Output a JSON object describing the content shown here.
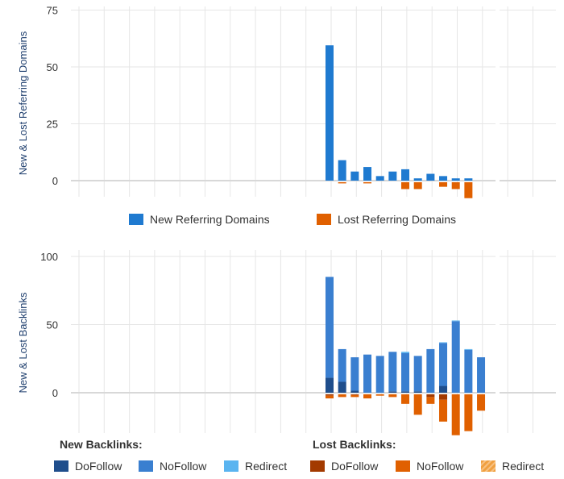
{
  "chart_data": [
    {
      "type": "bar",
      "ylabel": "New & Lost Referring Domains",
      "ylim": [
        -8,
        75
      ],
      "yticks": [
        0,
        25,
        50,
        75
      ],
      "grid": true,
      "legend": "bottom",
      "series": [
        {
          "name": "New Referring Domains",
          "color": "#1f7ad0",
          "values": [
            59.5,
            9,
            4,
            6,
            2,
            4,
            5,
            1,
            3,
            2,
            1,
            1,
            0
          ]
        },
        {
          "name": "Lost Referring Domains",
          "color": "#e06000",
          "values": [
            0,
            -0.5,
            0,
            -0.5,
            0,
            0,
            -3,
            -3,
            0,
            -2,
            -3,
            -7,
            0
          ]
        }
      ]
    },
    {
      "type": "bar",
      "stacked": true,
      "ylabel": "New & Lost Backlinks",
      "ylim": [
        -32,
        100
      ],
      "yticks": [
        0,
        50,
        100
      ],
      "grid": true,
      "legend": "bottom",
      "legend_groups": [
        "New Backlinks:",
        "Lost Backlinks:"
      ],
      "series": [
        {
          "name": "DoFollow",
          "group": "new",
          "color": "#1f4e8c",
          "values": [
            11,
            8,
            1.5,
            0,
            0,
            1,
            1,
            1,
            0,
            5,
            0,
            0,
            0
          ]
        },
        {
          "name": "NoFollow",
          "group": "new",
          "color": "#3a7fd0",
          "values": [
            74,
            24,
            24.5,
            28,
            27,
            29,
            28,
            26,
            32,
            31.5,
            52.5,
            31.5,
            26
          ]
        },
        {
          "name": "Redirect",
          "group": "new",
          "color": "#5ab4f0",
          "values": [
            0,
            0,
            0,
            0,
            0,
            0,
            1,
            0,
            0,
            0.5,
            0.5,
            0.5,
            0
          ]
        },
        {
          "name": "DoFollow",
          "group": "lost",
          "color": "#a33a00",
          "values": [
            -1,
            0,
            -0.5,
            0,
            0,
            0,
            0,
            0,
            -2,
            -4,
            0,
            0,
            0
          ]
        },
        {
          "name": "NoFollow",
          "group": "lost",
          "color": "#e06000",
          "values": [
            -2,
            -2,
            -1.5,
            -3,
            -1,
            -2,
            -7,
            -15,
            -5,
            -16,
            -30,
            -27,
            -12
          ]
        },
        {
          "name": "Redirect",
          "group": "lost",
          "color": "#f0a040",
          "values": [
            0,
            0,
            0,
            0,
            0,
            0,
            0,
            0,
            0,
            0,
            0,
            0,
            0
          ]
        }
      ]
    }
  ]
}
